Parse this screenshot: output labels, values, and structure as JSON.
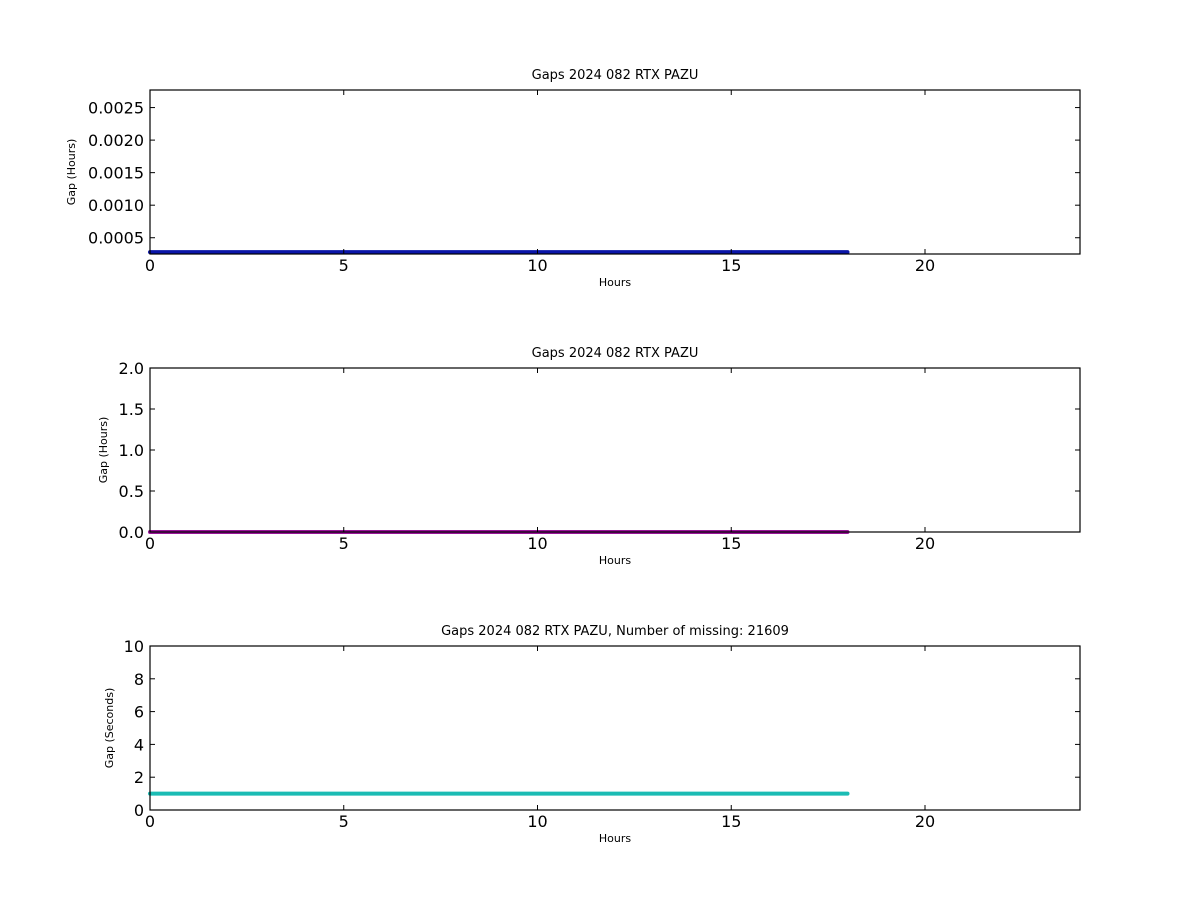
{
  "chart_data": [
    {
      "type": "line",
      "title": "Gaps 2024 082 RTX  PAZU",
      "xlabel": "Hours",
      "ylabel": "Gap (Hours)",
      "xlim": [
        0,
        24
      ],
      "ylim": [
        0.00025,
        0.00277
      ],
      "xticks": [
        0,
        5,
        10,
        15,
        20
      ],
      "xtick_labels": [
        "0",
        "5",
        "10",
        "15",
        "20"
      ],
      "yticks": [
        0.0005,
        0.001,
        0.0015,
        0.002,
        0.0025
      ],
      "ytick_labels": [
        "0.0005",
        "0.0010",
        "0.0015",
        "0.0020",
        "0.0025"
      ],
      "grid": false,
      "series": [
        {
          "color": "#0a15a8",
          "x": [
            0,
            18
          ],
          "y": [
            0.000278,
            0.000278
          ]
        }
      ]
    },
    {
      "type": "line",
      "title": "Gaps 2024 082 RTX  PAZU",
      "xlabel": "Hours",
      "ylabel": "Gap (Hours)",
      "xlim": [
        0,
        24
      ],
      "ylim": [
        0,
        2
      ],
      "xticks": [
        0,
        5,
        10,
        15,
        20
      ],
      "xtick_labels": [
        "0",
        "5",
        "10",
        "15",
        "20"
      ],
      "yticks": [
        0,
        0.5,
        1,
        1.5,
        2
      ],
      "ytick_labels": [
        "0.0",
        "0.5",
        "1.0",
        "1.5",
        "2.0"
      ],
      "grid": false,
      "series": [
        {
          "color": "#9a139a",
          "x": [
            0,
            18
          ],
          "y": [
            0.000278,
            0.000278
          ]
        }
      ]
    },
    {
      "type": "line",
      "title": "Gaps 2024 082 RTX  PAZU, Number of missing: 21609",
      "xlabel": "Hours",
      "ylabel": "Gap (Seconds)",
      "xlim": [
        0,
        24
      ],
      "ylim": [
        0,
        10
      ],
      "xticks": [
        0,
        5,
        10,
        15,
        20
      ],
      "xtick_labels": [
        "0",
        "5",
        "10",
        "15",
        "20"
      ],
      "yticks": [
        0,
        2,
        4,
        6,
        8,
        10
      ],
      "ytick_labels": [
        "0",
        "2",
        "4",
        "6",
        "8",
        "10"
      ],
      "grid": false,
      "series": [
        {
          "color": "#1bbcb4",
          "x": [
            0,
            18
          ],
          "y": [
            1,
            1
          ]
        }
      ]
    }
  ]
}
